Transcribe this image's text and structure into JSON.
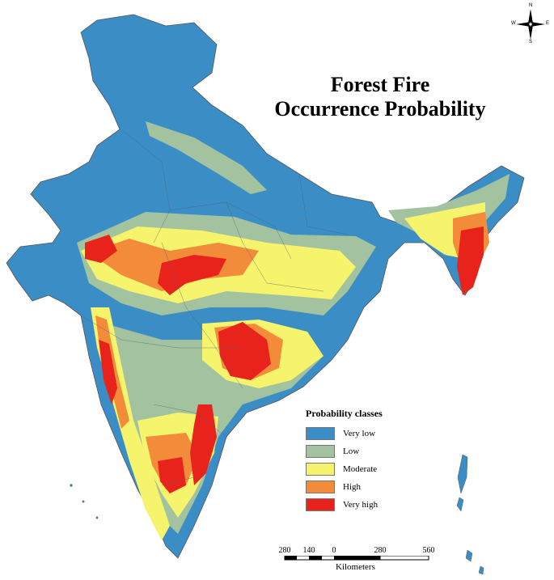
{
  "title": {
    "line1": "Forest Fire",
    "line2": "Occurrence Probability"
  },
  "legend": {
    "title": "Probability classes",
    "items": [
      {
        "label": "Very low",
        "color": "#3b8dc6"
      },
      {
        "label": "Low",
        "color": "#a3c2a0"
      },
      {
        "label": "Moderate",
        "color": "#f6f36d"
      },
      {
        "label": "High",
        "color": "#f28c3a"
      },
      {
        "label": "Very high",
        "color": "#e8231c"
      }
    ]
  },
  "scale_bar": {
    "ticks": [
      "280",
      "140",
      "0",
      "280",
      "560"
    ],
    "unit": "Kilometers"
  },
  "compass": {
    "n": "N",
    "s": "S",
    "e": "E",
    "w": "W"
  }
}
